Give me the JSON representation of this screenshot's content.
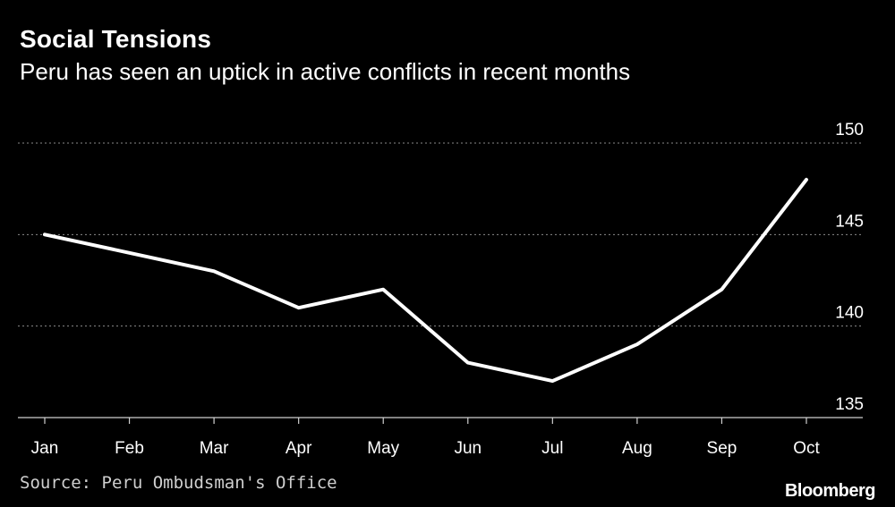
{
  "chart_data": {
    "type": "line",
    "title": "Social Tensions",
    "subtitle": "Peru has seen an uptick in active conflicts in recent months",
    "categories": [
      "Jan",
      "Feb",
      "Mar",
      "Apr",
      "May",
      "Jun",
      "Jul",
      "Aug",
      "Sep",
      "Oct"
    ],
    "series": [
      {
        "name": "Active conflicts",
        "values": [
          145,
          144,
          143,
          141,
          142,
          138,
          137,
          139,
          142,
          148
        ]
      }
    ],
    "ylim": [
      135,
      150
    ],
    "yticks": [
      135,
      140,
      145,
      150
    ],
    "y_axis_side": "right",
    "grid": "dotted horizontal",
    "xlabel": "",
    "ylabel": ""
  },
  "footer": {
    "source": "Source: Peru Ombudsman's Office",
    "brand": "Bloomberg"
  },
  "colors": {
    "background": "#000000",
    "line": "#ffffff",
    "grid": "#8a8a8a",
    "text": "#ffffff"
  }
}
